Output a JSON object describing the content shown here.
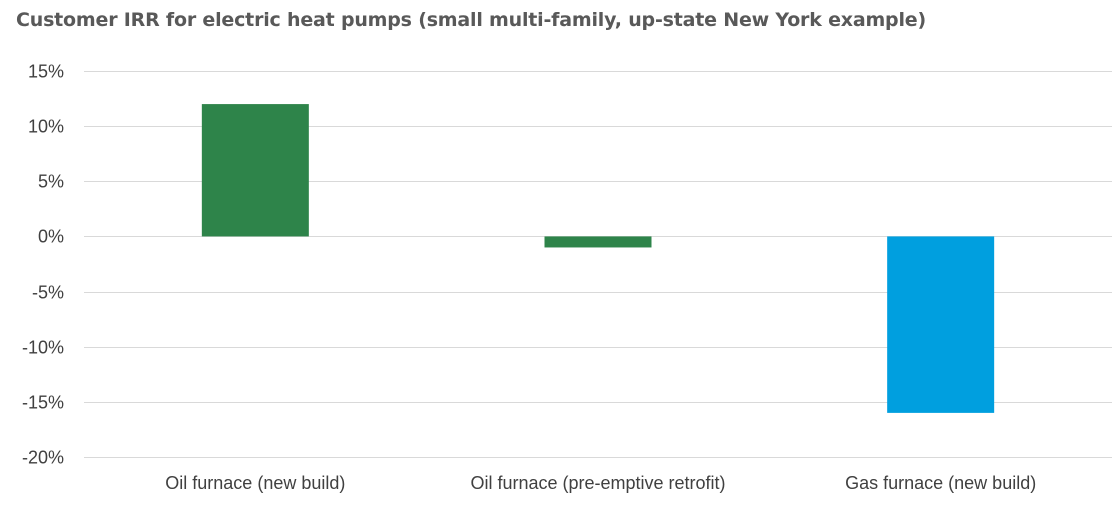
{
  "chart_data": {
    "type": "bar",
    "title": "Customer IRR for electric heat pumps (small multi-family, up-state New York example)",
    "xlabel": "",
    "ylabel": "",
    "categories": [
      "Oil furnace (new build)",
      "Oil furnace (pre-emptive retrofit)",
      "Gas furnace (new build)"
    ],
    "values": [
      12,
      -1,
      -16
    ],
    "unit": "%",
    "ylim": [
      -20,
      15
    ],
    "yticks": [
      15,
      10,
      5,
      0,
      -5,
      -10,
      -15,
      -20
    ],
    "ytick_labels": [
      "15%",
      "10%",
      "5%",
      "0%",
      "-5%",
      "-10%",
      "-15%",
      "-20%"
    ],
    "bar_colors": [
      "#2e844a",
      "#2e844a",
      "#009fdf"
    ],
    "grid": true,
    "legend": "none"
  }
}
